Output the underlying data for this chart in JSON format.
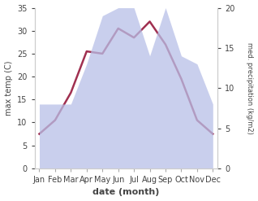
{
  "months": [
    "Jan",
    "Feb",
    "Mar",
    "Apr",
    "May",
    "Jun",
    "Jul",
    "Aug",
    "Sep",
    "Oct",
    "Nov",
    "Dec"
  ],
  "month_positions": [
    0,
    1,
    2,
    3,
    4,
    5,
    6,
    7,
    8,
    9,
    10,
    11
  ],
  "temperature": [
    7.5,
    10.5,
    16.5,
    25.5,
    25.0,
    30.5,
    28.5,
    32.0,
    27.0,
    19.5,
    10.5,
    7.5
  ],
  "precipitation": [
    8.0,
    8.0,
    8.0,
    13.0,
    19.0,
    20.0,
    20.0,
    14.0,
    20.0,
    14.0,
    13.0,
    8.0
  ],
  "temp_ylim": [
    0,
    35
  ],
  "precip_ylim": [
    0,
    20
  ],
  "temp_yticks": [
    0,
    5,
    10,
    15,
    20,
    25,
    30,
    35
  ],
  "precip_yticks": [
    0,
    5,
    10,
    15,
    20
  ],
  "temp_color": "#a03050",
  "precip_fill_color": "#b8c0e8",
  "precip_alpha": 0.75,
  "xlabel": "date (month)",
  "ylabel_left": "max temp (C)",
  "ylabel_right": "med. precipitation (kg/m2)",
  "background_color": "#ffffff",
  "temp_linewidth": 1.8,
  "tick_fontsize": 7,
  "xlabel_fontsize": 8,
  "ylabel_fontsize": 7,
  "ylabel_right_fontsize": 6
}
